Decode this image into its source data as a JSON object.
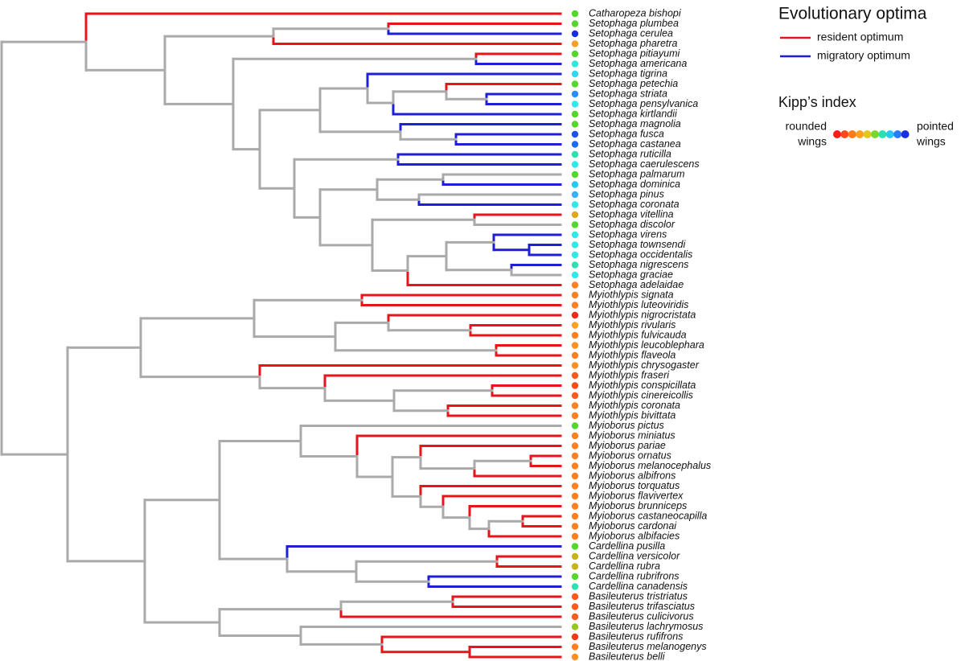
{
  "legend": {
    "title": "Evolutionary optima",
    "items": [
      {
        "label": "resident optimum",
        "color": "#e8131b"
      },
      {
        "label": "migratory optimum",
        "color": "#1f1fd8"
      }
    ]
  },
  "kipp": {
    "title": "Kipp’s index",
    "left": [
      "rounded",
      "wings"
    ],
    "right": [
      "pointed",
      "wings"
    ]
  },
  "tips": [
    {
      "label": "Catharopeza bishopi",
      "color": "#55d62c"
    },
    {
      "label": "Setophaga plumbea",
      "color": "#55d62c"
    },
    {
      "label": "Setophaga cerulea",
      "color": "#1a2fe0"
    },
    {
      "label": "Setophaga pharetra",
      "color": "#f5a020"
    },
    {
      "label": "Setophaga pitiayumi",
      "color": "#55d62c"
    },
    {
      "label": "Setophaga americana",
      "color": "#2de8d8"
    },
    {
      "label": "Setophaga tigrina",
      "color": "#30d8f0"
    },
    {
      "label": "Setophaga petechia",
      "color": "#55d62c"
    },
    {
      "label": "Setophaga striata",
      "color": "#2a8cff"
    },
    {
      "label": "Setophaga pensylvanica",
      "color": "#30e8e8"
    },
    {
      "label": "Setophaga kirtlandii",
      "color": "#55d62c"
    },
    {
      "label": "Setophaga magnolia",
      "color": "#55d62c"
    },
    {
      "label": "Setophaga fusca",
      "color": "#1f50f0"
    },
    {
      "label": "Setophaga castanea",
      "color": "#1f6cf0"
    },
    {
      "label": "Setophaga ruticilla",
      "color": "#2de0b0"
    },
    {
      "label": "Setophaga caerulescens",
      "color": "#30e8e8"
    },
    {
      "label": "Setophaga palmarum",
      "color": "#55d62c"
    },
    {
      "label": "Setophaga dominica",
      "color": "#29c8f0"
    },
    {
      "label": "Setophaga pinus",
      "color": "#3cb0ff"
    },
    {
      "label": "Setophaga coronata",
      "color": "#30e8e8"
    },
    {
      "label": "Setophaga vitellina",
      "color": "#e0a81e"
    },
    {
      "label": "Setophaga discolor",
      "color": "#55d62c"
    },
    {
      "label": "Setophaga virens",
      "color": "#30e8e8"
    },
    {
      "label": "Setophaga townsendi",
      "color": "#30e8e8"
    },
    {
      "label": "Setophaga occidentalis",
      "color": "#30e8e8"
    },
    {
      "label": "Setophaga nigrescens",
      "color": "#2de0b0"
    },
    {
      "label": "Setophaga graciae",
      "color": "#30e8e8"
    },
    {
      "label": "Setophaga adelaidae",
      "color": "#ff8020"
    },
    {
      "label": "Myiothlypis signata",
      "color": "#ff8020"
    },
    {
      "label": "Myiothlypis luteoviridis",
      "color": "#ff8020"
    },
    {
      "label": "Myiothlypis nigrocristata",
      "color": "#f02a1a"
    },
    {
      "label": "Myiothlypis rivularis",
      "color": "#ffa01e"
    },
    {
      "label": "Myiothlypis fulvicauda",
      "color": "#ff8020"
    },
    {
      "label": "Myiothlypis leucoblephara",
      "color": "#ff9020"
    },
    {
      "label": "Myiothlypis flaveola",
      "color": "#ff8020"
    },
    {
      "label": "Myiothlypis chrysogaster",
      "color": "#ff9020"
    },
    {
      "label": "Myiothlypis fraseri",
      "color": "#ff5a1e"
    },
    {
      "label": "Myiothlypis conspicillata",
      "color": "#ff4a1a"
    },
    {
      "label": "Myiothlypis cinereicollis",
      "color": "#ff5a1e"
    },
    {
      "label": "Myiothlypis coronata",
      "color": "#ff8020"
    },
    {
      "label": "Myiothlypis bivittata",
      "color": "#ff8020"
    },
    {
      "label": "Myioborus pictus",
      "color": "#55d62c"
    },
    {
      "label": "Myioborus miniatus",
      "color": "#ff8020"
    },
    {
      "label": "Myioborus pariae",
      "color": "#ff8020"
    },
    {
      "label": "Myioborus ornatus",
      "color": "#ff8020"
    },
    {
      "label": "Myioborus melanocephalus",
      "color": "#ff8020"
    },
    {
      "label": "Myioborus albifrons",
      "color": "#ff8020"
    },
    {
      "label": "Myioborus torquatus",
      "color": "#ff8020"
    },
    {
      "label": "Myioborus flavivertex",
      "color": "#ff8020"
    },
    {
      "label": "Myioborus brunniceps",
      "color": "#ff8020"
    },
    {
      "label": "Myioborus castaneocapilla",
      "color": "#ff8020"
    },
    {
      "label": "Myioborus cardonai",
      "color": "#ff8020"
    },
    {
      "label": "Myioborus albifacies",
      "color": "#ff8020"
    },
    {
      "label": "Cardellina pusilla",
      "color": "#55d62c"
    },
    {
      "label": "Cardellina versicolor",
      "color": "#c8b41e"
    },
    {
      "label": "Cardellina rubra",
      "color": "#c8b41e"
    },
    {
      "label": "Cardellina rubrifrons",
      "color": "#55d62c"
    },
    {
      "label": "Cardellina canadensis",
      "color": "#2de0b0"
    },
    {
      "label": "Basileuterus tristriatus",
      "color": "#ff5a1e"
    },
    {
      "label": "Basileuterus trifasciatus",
      "color": "#ff5a1e"
    },
    {
      "label": "Basileuterus culicivorus",
      "color": "#ff5a1e"
    },
    {
      "label": "Basileuterus lachrymosus",
      "color": "#96c81e"
    },
    {
      "label": "Basileuterus rufifrons",
      "color": "#f03a1a"
    },
    {
      "label": "Basileuterus melanogenys",
      "color": "#ff8020"
    },
    {
      "label": "Basileuterus belli",
      "color": "#ff9020"
    }
  ]
}
